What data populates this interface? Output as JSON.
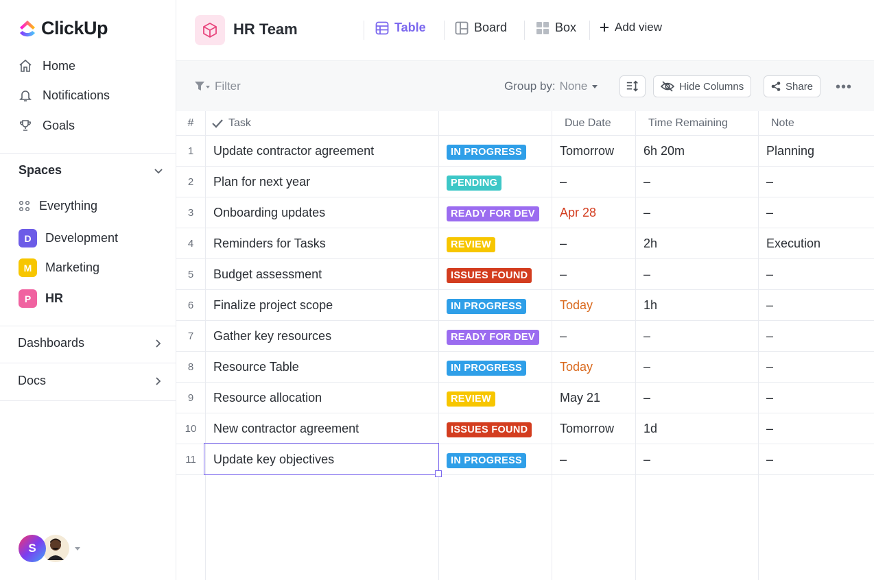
{
  "app": {
    "name": "ClickUp"
  },
  "colors": {
    "accent": "#7b68ee",
    "in_progress": "#2f9fe8",
    "pending": "#3dc7c7",
    "ready_for_dev": "#9b6cf0",
    "review": "#f7c600",
    "issues_found": "#d33d1f",
    "date_red": "#d33d1f",
    "date_orange": "#d9681c"
  },
  "sidebar": {
    "nav": [
      {
        "label": "Home",
        "icon": "home-icon"
      },
      {
        "label": "Notifications",
        "icon": "bell-icon"
      },
      {
        "label": "Goals",
        "icon": "trophy-icon"
      }
    ],
    "spaces_label": "Spaces",
    "everything_label": "Everything",
    "spaces": [
      {
        "badge": "D",
        "label": "Development",
        "color": "#6c5ce7"
      },
      {
        "badge": "M",
        "label": "Marketing",
        "color": "#f7c600"
      },
      {
        "badge": "P",
        "label": "HR",
        "color": "#f062a0"
      }
    ],
    "dashboards_label": "Dashboards",
    "docs_label": "Docs",
    "avatar_initial": "S"
  },
  "header": {
    "title": "HR Team",
    "views": [
      {
        "label": "Table",
        "icon": "table-icon",
        "active": true
      },
      {
        "label": "Board",
        "icon": "board-icon",
        "active": false
      },
      {
        "label": "Box",
        "icon": "box-icon",
        "active": false
      }
    ],
    "add_view": "Add view"
  },
  "toolbar": {
    "filter": "Filter",
    "group_by_label": "Group by:",
    "group_by_value": "None",
    "hide_columns": "Hide Columns",
    "share": "Share"
  },
  "table": {
    "columns": {
      "num": "#",
      "task": "Task",
      "status": "",
      "due": "Due Date",
      "remaining": "Time Remaining",
      "note": "Note"
    },
    "rows": [
      {
        "num": "1",
        "task": "Update contractor agreement",
        "status": "IN PROGRESS",
        "status_key": "in_progress",
        "due": "Tomorrow",
        "due_tone": "",
        "remaining": "6h 20m",
        "note": "Planning"
      },
      {
        "num": "2",
        "task": "Plan for next year",
        "status": "PENDING",
        "status_key": "pending",
        "due": "–",
        "due_tone": "",
        "remaining": "–",
        "note": "–"
      },
      {
        "num": "3",
        "task": "Onboarding updates",
        "status": "READY FOR DEV",
        "status_key": "ready_for_dev",
        "due": "Apr 28",
        "due_tone": "red",
        "remaining": "–",
        "note": "–"
      },
      {
        "num": "4",
        "task": "Reminders for Tasks",
        "status": "REVIEW",
        "status_key": "review",
        "due": "–",
        "due_tone": "",
        "remaining": "2h",
        "note": "Execution"
      },
      {
        "num": "5",
        "task": "Budget assessment",
        "status": "ISSUES FOUND",
        "status_key": "issues_found",
        "due": "–",
        "due_tone": "",
        "remaining": "–",
        "note": "–"
      },
      {
        "num": "6",
        "task": "Finalize project scope",
        "status": "IN PROGRESS",
        "status_key": "in_progress",
        "due": "Today",
        "due_tone": "orange",
        "remaining": "1h",
        "note": "–"
      },
      {
        "num": "7",
        "task": "Gather key resources",
        "status": "READY FOR DEV",
        "status_key": "ready_for_dev",
        "due": "–",
        "due_tone": "",
        "remaining": "–",
        "note": "–"
      },
      {
        "num": "8",
        "task": "Resource Table",
        "status": "IN PROGRESS",
        "status_key": "in_progress",
        "due": "Today",
        "due_tone": "orange",
        "remaining": "–",
        "note": "–"
      },
      {
        "num": "9",
        "task": "Resource allocation",
        "status": "REVIEW",
        "status_key": "review",
        "due": "May 21",
        "due_tone": "",
        "remaining": "–",
        "note": "–"
      },
      {
        "num": "10",
        "task": "New contractor agreement",
        "status": "ISSUES FOUND",
        "status_key": "issues_found",
        "due": "Tomorrow",
        "due_tone": "",
        "remaining": "1d",
        "note": "–"
      },
      {
        "num": "11",
        "task": "Update key objectives",
        "status": "IN PROGRESS",
        "status_key": "in_progress",
        "due": "–",
        "due_tone": "",
        "remaining": "–",
        "note": "–"
      }
    ]
  }
}
